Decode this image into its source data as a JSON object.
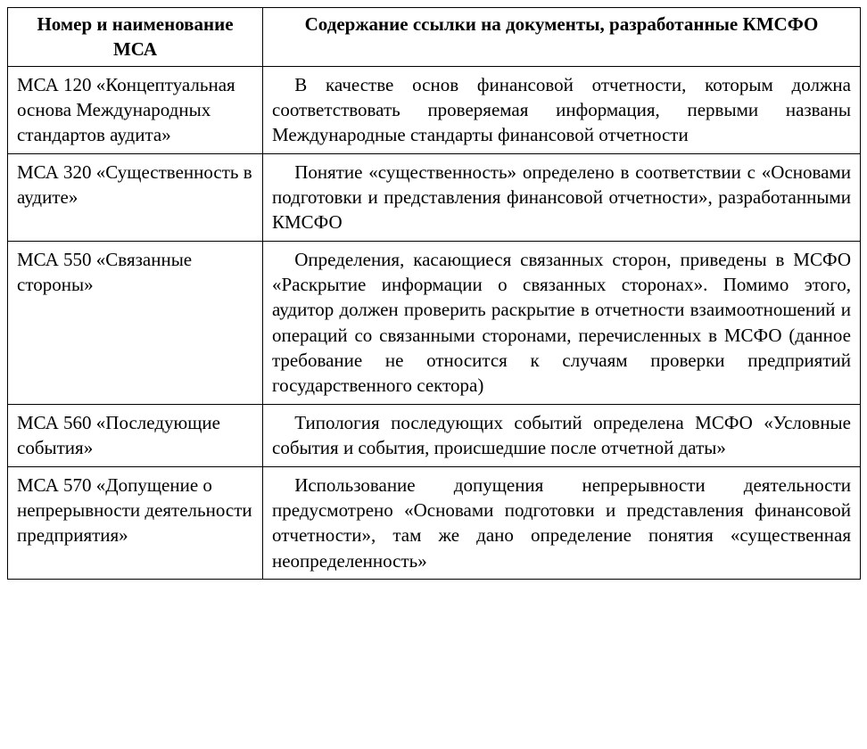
{
  "table": {
    "header": {
      "col1": "Номер и наименование МСА",
      "col2": "Содержание ссылки на документы, разработанные КМСФО"
    },
    "rows": [
      {
        "name": "МСА 120 «Концептуаль­ная основа Международ­ных стандартов аудита»",
        "content": "В качестве основ финансовой отчетности, которым должна соответствовать проверяемая информация, первыми названы Международные стандарты финансовой отчетности"
      },
      {
        "name": "МСА 320 «Существен­ность в аудите»",
        "content": "Понятие «существенность» определено в соответ­ствии с «Основами подготовки и представления финансовой отчетности», разработанными КМСФО"
      },
      {
        "name": "МСА 550 «Связанные стороны»",
        "content": "Определения, касающиеся связанных сторон, при­ведены в МСФО «Раскрытие информации о связан­ных сторонах». Помимо этого, аудитор должен про­верить раскрытие в отчетности взаимоотношений и операций со связанными сторонами, перечислен­ных в МСФО (данное требование не относится к случаям проверки предприятий государственного сектора)"
      },
      {
        "name": "МСА 560 «Последующие события»",
        "content": "Типология последующих событий определена МСФО «Условные события и события, происшед­шие после отчетной даты»"
      },
      {
        "name": "МСА 570 «Допущение о непрерывности деятель­ности предприятия»",
        "content": "Использование допущения непрерывности деятель­ности предусмотрено «Основами подготовки и пред­ставления финансовой отчетности», там же дано определение понятия «существенная неопределен­ность»"
      }
    ]
  }
}
